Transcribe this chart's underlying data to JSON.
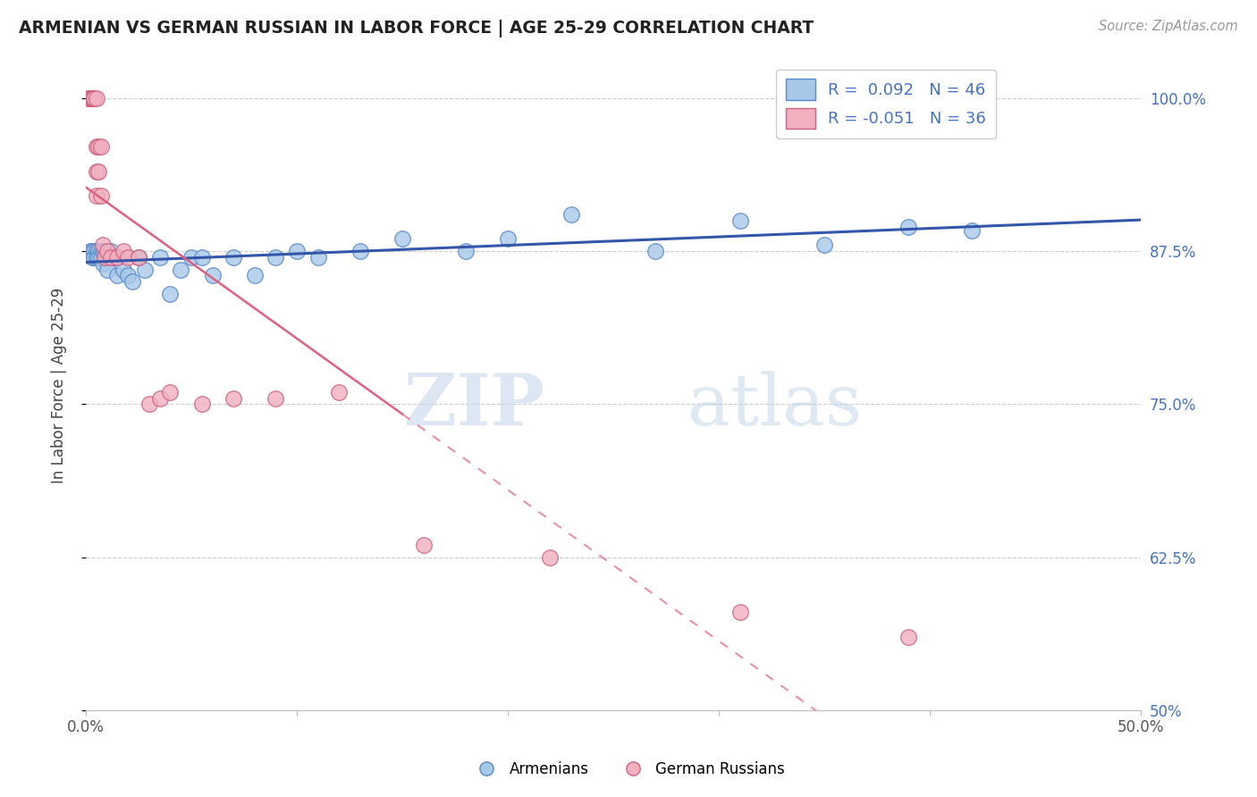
{
  "title": "ARMENIAN VS GERMAN RUSSIAN IN LABOR FORCE | AGE 25-29 CORRELATION CHART",
  "source": "Source: ZipAtlas.com",
  "ylabel": "In Labor Force | Age 25-29",
  "xlim": [
    0.0,
    0.5
  ],
  "ylim": [
    0.5,
    1.03
  ],
  "xticks": [
    0.0,
    0.1,
    0.2,
    0.3,
    0.4,
    0.5
  ],
  "xticklabels": [
    "0.0%",
    "",
    "",
    "",
    "",
    "50.0%"
  ],
  "ytick_positions": [
    0.5,
    0.625,
    0.75,
    0.875,
    1.0
  ],
  "ytick_labels_right": [
    "50%",
    "62.5%",
    "75.0%",
    "87.5%",
    "100.0%"
  ],
  "watermark_zip": "ZIP",
  "watermark_atlas": "atlas",
  "blue_color": "#a8c8e8",
  "blue_edge_color": "#5588cc",
  "pink_color": "#f0b0c0",
  "pink_edge_color": "#d06080",
  "blue_line_color": "#3355aa",
  "pink_line_color": "#e06080",
  "armenians_x": [
    0.002,
    0.003,
    0.003,
    0.004,
    0.004,
    0.005,
    0.005,
    0.006,
    0.006,
    0.007,
    0.007,
    0.008,
    0.008,
    0.009,
    0.01,
    0.01,
    0.012,
    0.013,
    0.015,
    0.015,
    0.018,
    0.02,
    0.022,
    0.025,
    0.028,
    0.035,
    0.04,
    0.045,
    0.05,
    0.055,
    0.06,
    0.07,
    0.08,
    0.09,
    0.1,
    0.11,
    0.13,
    0.15,
    0.18,
    0.2,
    0.23,
    0.27,
    0.31,
    0.35,
    0.39,
    0.42
  ],
  "armenians_y": [
    0.875,
    0.875,
    0.87,
    0.875,
    0.87,
    0.875,
    0.87,
    0.875,
    0.87,
    0.875,
    0.87,
    0.875,
    0.865,
    0.875,
    0.87,
    0.86,
    0.875,
    0.87,
    0.855,
    0.87,
    0.86,
    0.855,
    0.85,
    0.87,
    0.86,
    0.87,
    0.84,
    0.86,
    0.87,
    0.87,
    0.855,
    0.87,
    0.855,
    0.87,
    0.875,
    0.87,
    0.875,
    0.885,
    0.875,
    0.885,
    0.905,
    0.875,
    0.9,
    0.88,
    0.895,
    0.892
  ],
  "german_russian_x": [
    0.001,
    0.002,
    0.002,
    0.003,
    0.003,
    0.003,
    0.004,
    0.004,
    0.004,
    0.005,
    0.005,
    0.005,
    0.005,
    0.006,
    0.006,
    0.007,
    0.007,
    0.008,
    0.009,
    0.01,
    0.012,
    0.015,
    0.018,
    0.02,
    0.025,
    0.03,
    0.035,
    0.04,
    0.055,
    0.07,
    0.09,
    0.12,
    0.16,
    0.22,
    0.31,
    0.39
  ],
  "german_russian_y": [
    1.0,
    1.0,
    1.0,
    1.0,
    1.0,
    1.0,
    1.0,
    1.0,
    1.0,
    1.0,
    0.96,
    0.94,
    0.92,
    0.96,
    0.94,
    0.96,
    0.92,
    0.88,
    0.87,
    0.875,
    0.87,
    0.87,
    0.875,
    0.87,
    0.87,
    0.75,
    0.755,
    0.76,
    0.75,
    0.755,
    0.755,
    0.76,
    0.635,
    0.625,
    0.58,
    0.56
  ]
}
